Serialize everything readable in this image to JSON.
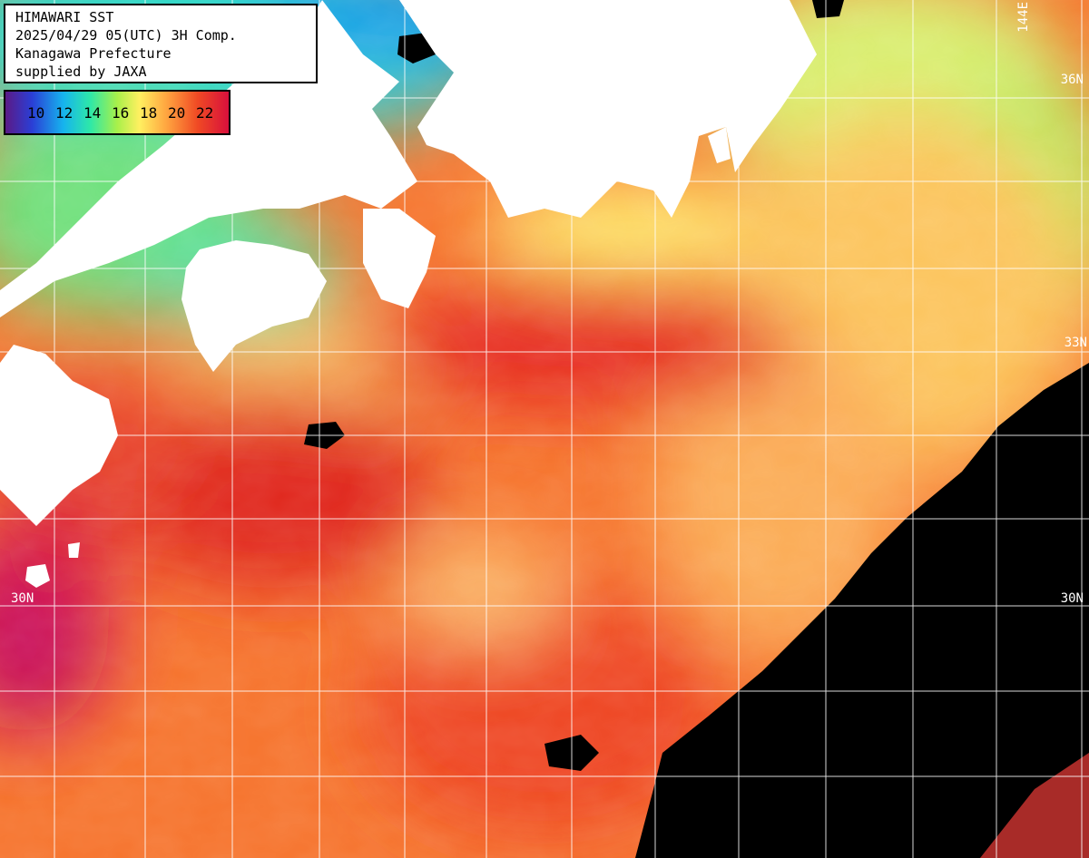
{
  "info": {
    "line1": "HIMAWARI SST",
    "line2": "2025/04/29 05(UTC) 3H Comp.",
    "line3": "Kanagawa Prefecture",
    "line4": "supplied by JAXA"
  },
  "scale": {
    "unit_values": [
      "10",
      "12",
      "14",
      "16",
      "18",
      "20",
      "22"
    ],
    "colors": [
      "#5b1a86",
      "#2a3fd6",
      "#16b4ee",
      "#2ee8a8",
      "#a8f04a",
      "#fff060",
      "#ffa640",
      "#f04a24",
      "#d8103c"
    ]
  },
  "grid_labels": {
    "lat_30n_left": "30N",
    "lat_30n_right": "30N",
    "lat_36n": "36N",
    "lat_33n": "33N",
    "lon_144e": "144E"
  },
  "colors": {
    "land": "#ffffff",
    "no_data": "#000000",
    "grid": "#ffffff"
  }
}
